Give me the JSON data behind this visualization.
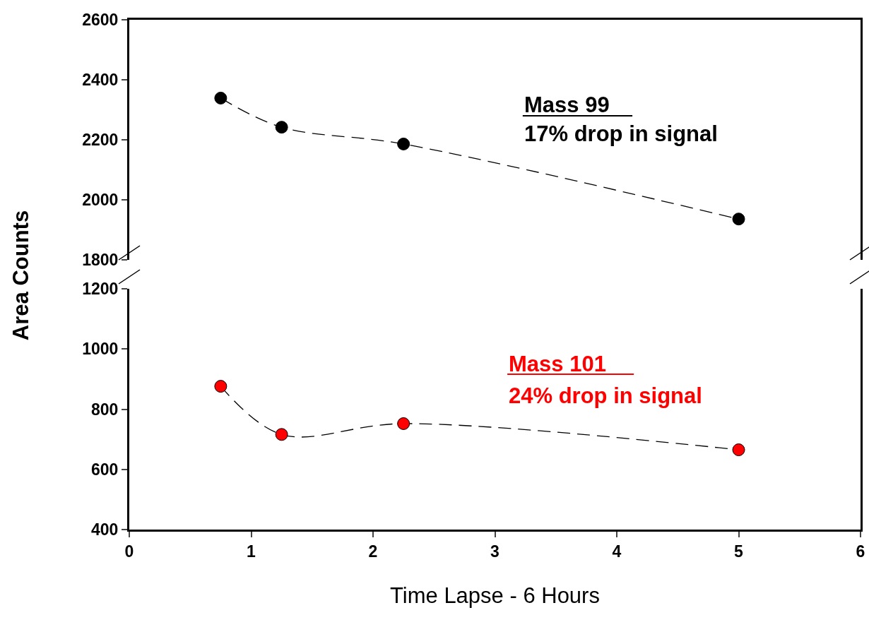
{
  "chart_data": [
    {
      "type": "line",
      "ylabel": "Area Counts",
      "x": [
        0.75,
        1.25,
        2.25,
        5
      ],
      "series": [
        {
          "color": "#000000",
          "values": [
            2339,
            2242,
            2186,
            1936
          ]
        }
      ],
      "xlim": [
        0,
        6
      ],
      "xticks": [
        0,
        1,
        2,
        3,
        4,
        5,
        6
      ],
      "ylim": [
        1800,
        2600
      ],
      "yticks": [
        1800,
        2000,
        2200,
        2400,
        2600
      ],
      "annotations": [
        "Mass 99",
        "17% drop in signal"
      ],
      "tick_labels": "y",
      "marker": "circle",
      "line_style": "dashed"
    },
    {
      "type": "line",
      "xlabel": "Time Lapse - 6 Hours",
      "x": [
        0.75,
        1.25,
        2.25,
        5
      ],
      "series": [
        {
          "color": "#ff0000",
          "values": [
            876,
            716,
            752,
            665
          ]
        }
      ],
      "xlim": [
        0,
        6
      ],
      "xticks": [
        0,
        1,
        2,
        3,
        4,
        5,
        6
      ],
      "ylim": [
        400,
        1200
      ],
      "yticks": [
        400,
        600,
        800,
        1000,
        1200
      ],
      "annotations": [
        "Mass 101",
        "24% drop in signal"
      ],
      "marker": "circle",
      "line_style": "dashed"
    }
  ]
}
